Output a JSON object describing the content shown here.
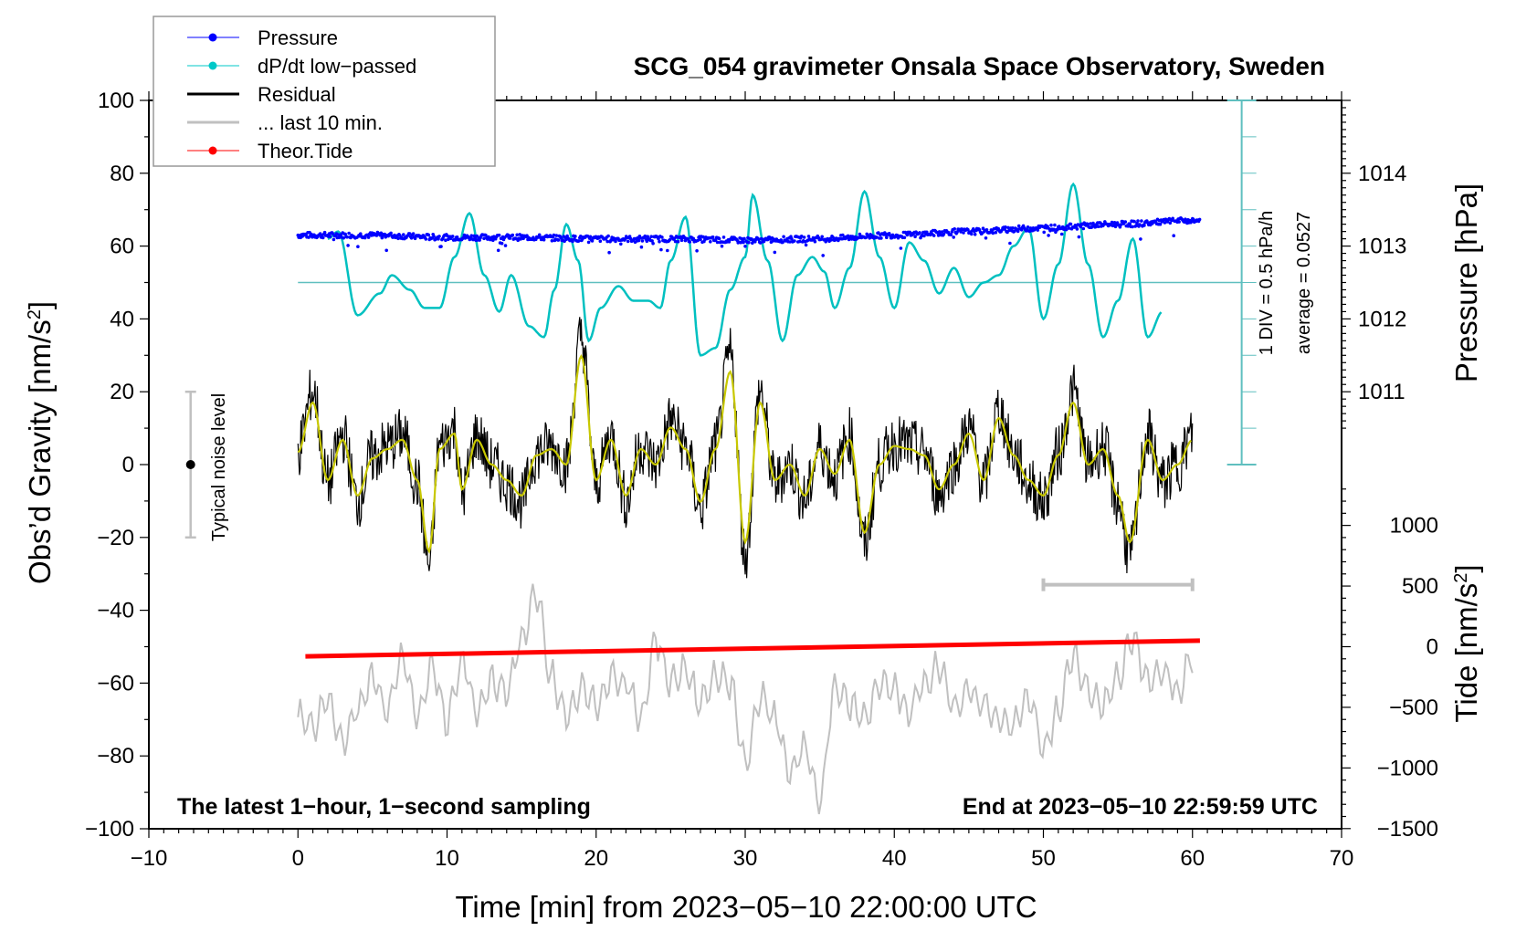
{
  "chart_data": {
    "type": "line",
    "title": "SCG_054 gravimeter Onsala Space Observatory, Sweden",
    "xlabel": "Time [min] from 2023−05−10 22:00:00 UTC",
    "ylabel_left": "Obs’d Gravity [nm/s²]",
    "ylabel_left_main": "Obs’d Gravity [nm/s",
    "ylabel_left_sup": "2",
    "ylabel_left_end": "]",
    "ylabel_right_pressure": "Pressure [hPa]",
    "ylabel_right_tide_main": "Tide [nm/s",
    "ylabel_right_tide_sup": "2",
    "ylabel_right_tide_end": "]",
    "xlim": [
      -10,
      70
    ],
    "ylim_left": [
      -100,
      100
    ],
    "x_ticks": [
      "−10",
      "0",
      "10",
      "20",
      "30",
      "40",
      "50",
      "60",
      "70"
    ],
    "x_tick_values": [
      -10,
      0,
      10,
      20,
      30,
      40,
      50,
      60,
      70
    ],
    "y_left_ticks": [
      "100",
      "80",
      "60",
      "40",
      "20",
      "0",
      "−20",
      "−40",
      "−60",
      "−80",
      "−100"
    ],
    "y_left_tick_values": [
      100,
      80,
      60,
      40,
      20,
      0,
      -20,
      -40,
      -60,
      -80,
      -100
    ],
    "pressure_axis": {
      "ticks": [
        "1014",
        "1013",
        "1012",
        "1011"
      ],
      "tick_values": [
        1014,
        1013,
        1012,
        1011
      ],
      "gravity_equiv_of_1013": 60,
      "gravity_per_hPa": 20
    },
    "tide_axis": {
      "ticks": [
        "1000",
        "500",
        "0",
        "−500",
        "−1000",
        "−1500"
      ],
      "tick_values": [
        1000,
        500,
        0,
        -500,
        -1000,
        -1500
      ],
      "gravity_equiv_of_0": -50,
      "gravity_per_1000": 33.3
    },
    "annotations": {
      "bottom_left": "The latest 1−hour, 1−second sampling",
      "bottom_right": "End at 2023−05−10 22:59:59 UTC",
      "noise_label": "Typical noise level",
      "noise_range": [
        -20,
        20
      ],
      "div_label": "1 DIV = 0.5 hPa/h",
      "average_label": "average = 0.0527",
      "last10_bar_range_min": [
        50,
        60
      ],
      "last10_bar_level": -33
    },
    "legend": {
      "placement": "top-left",
      "entries": [
        {
          "label": "Pressure",
          "color": "#0000ff",
          "marker": "dot"
        },
        {
          "label": "dP/dt low−passed",
          "color": "#00c8c8",
          "marker": "dot"
        },
        {
          "label": "Residual",
          "color": "#000000",
          "marker": "line"
        },
        {
          "label": "... last 10 min.",
          "color": "#c0c0c0",
          "marker": "line"
        },
        {
          "label": "Theor.Tide",
          "color": "#ff0000",
          "marker": "dot"
        }
      ]
    },
    "series": [
      {
        "name": "Pressure",
        "unit": "hPa",
        "color": "#0000ff",
        "x": [
          0,
          5,
          10,
          15,
          20,
          25,
          30,
          35,
          40,
          45,
          50,
          55,
          60
        ],
        "values": [
          1013.15,
          1013.15,
          1013.12,
          1013.12,
          1013.1,
          1013.1,
          1013.08,
          1013.1,
          1013.15,
          1013.2,
          1013.25,
          1013.3,
          1013.35
        ]
      },
      {
        "name": "dP/dt low-passed",
        "unit": "hPa/h (plotted on gravity scale, baseline at 50)",
        "color": "#00c8c8",
        "baseline_gravity": 50,
        "x": [
          2,
          2.7,
          4,
          5.5,
          6.3,
          7.5,
          8.5,
          9.5,
          10.5,
          11.5,
          12.5,
          13.5,
          14.3,
          15.5,
          16.5,
          17.2,
          18,
          18.8,
          19.5,
          20.3,
          21.5,
          22.5,
          23.5,
          24.3,
          25,
          26,
          27,
          28,
          29,
          30,
          30.5,
          31.5,
          32.5,
          33.5,
          34.5,
          35.3,
          36,
          37,
          38,
          39,
          40,
          41,
          42,
          43,
          44,
          45,
          46,
          47,
          48,
          49,
          50,
          51,
          52,
          53,
          54,
          55,
          56,
          57,
          58
        ],
        "values": [
          62,
          64,
          41,
          47,
          52,
          48,
          43,
          43,
          57,
          69,
          52,
          42,
          52,
          38,
          35,
          48,
          66,
          56,
          34,
          43,
          49,
          45,
          45,
          43,
          56,
          68,
          30,
          32,
          48,
          57,
          74,
          56,
          34,
          52,
          57,
          53,
          43,
          54,
          75,
          57,
          43,
          61,
          56,
          47,
          54,
          46,
          50,
          52,
          60,
          65,
          40,
          55,
          77,
          55,
          35,
          45,
          62,
          35,
          42
        ]
      },
      {
        "name": "Residual",
        "unit": "nm/s²",
        "color": "#000000",
        "smoothed_color": "#c8c800",
        "x": [
          0,
          1,
          2,
          3,
          4,
          5,
          6,
          7,
          8,
          8.8,
          9.5,
          10.5,
          11,
          12,
          13,
          14,
          15,
          16,
          17,
          18,
          19,
          20,
          21,
          22,
          23,
          24,
          25,
          26,
          27,
          28,
          29,
          30,
          31,
          32,
          33,
          34,
          35,
          36,
          37,
          38,
          39,
          40,
          41,
          42,
          43,
          44,
          45,
          46,
          47,
          48,
          49,
          50,
          51,
          52,
          53,
          54,
          55,
          55.8,
          57,
          58,
          59,
          60
        ],
        "values": [
          4,
          20,
          -5,
          8,
          -10,
          2,
          5,
          8,
          -5,
          -28,
          5,
          10,
          -8,
          8,
          0,
          -5,
          -10,
          3,
          5,
          0,
          35,
          -5,
          8,
          -10,
          5,
          0,
          12,
          5,
          -12,
          5,
          30,
          -25,
          20,
          -5,
          0,
          -10,
          5,
          -3,
          8,
          -22,
          0,
          6,
          5,
          3,
          -8,
          0,
          10,
          -5,
          15,
          3,
          -5,
          -10,
          3,
          20,
          0,
          5,
          -10,
          -25,
          8,
          -5,
          0,
          8
        ]
      },
      {
        "name": "... last 10 min. (stretched over full hour)",
        "unit": "nm/s² (display scale)",
        "color": "#c0c0c0",
        "x": [
          0,
          1,
          2,
          3,
          4,
          5,
          6,
          7,
          8,
          9,
          10,
          11,
          12,
          13,
          14,
          15,
          16,
          17,
          18,
          19,
          20,
          21,
          22,
          23,
          24,
          25,
          26,
          27,
          28,
          29,
          30,
          31,
          32,
          33,
          34,
          35,
          36,
          37,
          38,
          39,
          40,
          41,
          42,
          43,
          44,
          45,
          46,
          47,
          48,
          49,
          50,
          51,
          52,
          53,
          54,
          55,
          56,
          57,
          58,
          59,
          60
        ],
        "values": [
          -69,
          -72,
          -64,
          -76,
          -67,
          -58,
          -68,
          -52,
          -70,
          -55,
          -70,
          -54,
          -68,
          -60,
          -62,
          -48,
          -36,
          -58,
          -70,
          -62,
          -66,
          -58,
          -60,
          -70,
          -48,
          -60,
          -56,
          -66,
          -58,
          -60,
          -82,
          -64,
          -70,
          -84,
          -78,
          -92,
          -62,
          -66,
          -70,
          -60,
          -62,
          -68,
          -60,
          -56,
          -66,
          -62,
          -66,
          -70,
          -72,
          -64,
          -78,
          -68,
          -52,
          -62,
          -66,
          -58,
          -48,
          -60,
          -56,
          -62,
          -52
        ]
      },
      {
        "name": "Theor.Tide",
        "unit": "nm/s² (tide axis)",
        "color": "#ff0000",
        "x": [
          0,
          60
        ],
        "values": [
          -80,
          50
        ]
      }
    ]
  }
}
